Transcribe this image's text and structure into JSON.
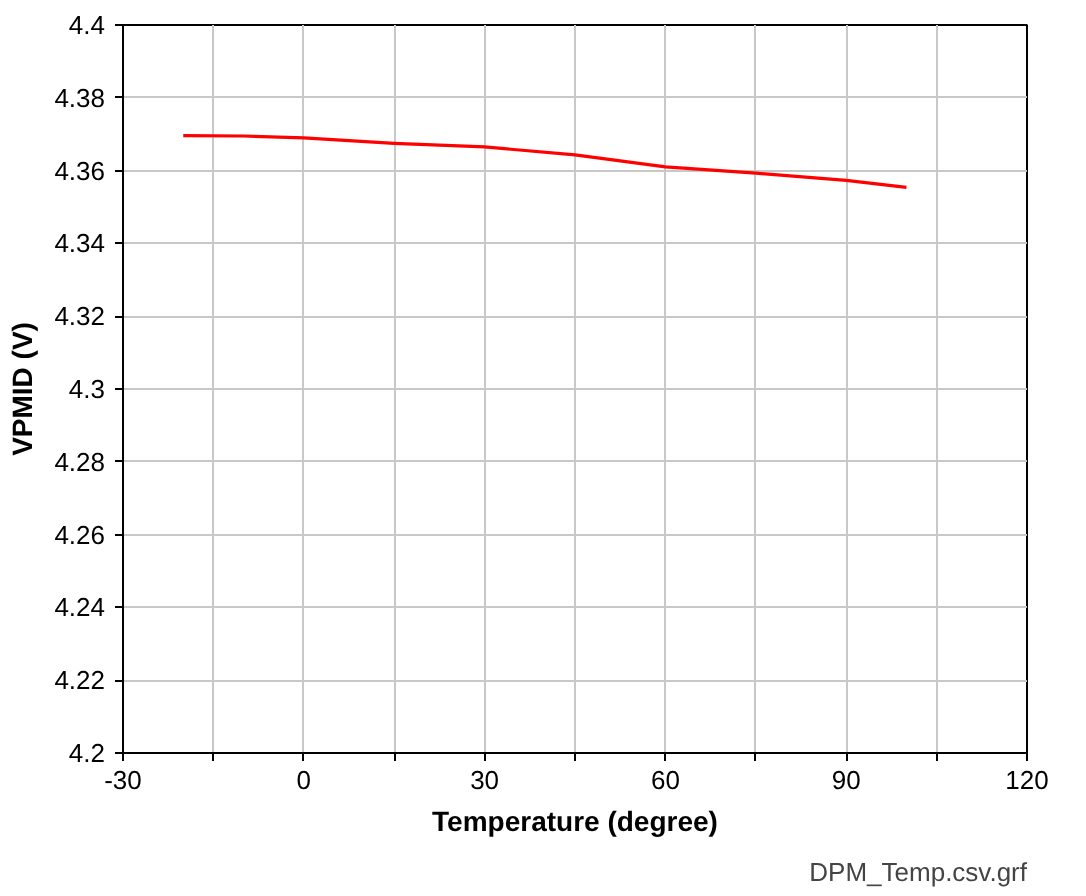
{
  "chart_data": {
    "type": "line",
    "xlabel": "Temperature (degree)",
    "ylabel": "VPMID (V)",
    "x": [
      -20,
      -10,
      0,
      15,
      30,
      45,
      60,
      75,
      90,
      100
    ],
    "series": [
      {
        "color": "#ff0000",
        "values": [
          4.3696,
          4.3695,
          4.369,
          4.3675,
          4.3665,
          4.3643,
          4.361,
          4.3593,
          4.3573,
          4.3554
        ]
      }
    ],
    "xlim": [
      -30,
      120
    ],
    "ylim": [
      4.2,
      4.4
    ],
    "xticks": [
      -30,
      {
        "value": -15,
        "label": null
      },
      0,
      {
        "value": 15,
        "label": null
      },
      30,
      {
        "value": 45,
        "label": null
      },
      60,
      {
        "value": 75,
        "label": null
      },
      90,
      {
        "value": 105,
        "label": null
      },
      120
    ],
    "yticks": [
      4.2,
      4.22,
      4.24,
      4.26,
      4.28,
      4.3,
      4.32,
      4.34,
      4.36,
      4.38,
      4.4
    ],
    "grid": true,
    "marker": "none",
    "line_style": "solid",
    "annotations": [
      "DPM_Temp.csv.grf"
    ]
  }
}
